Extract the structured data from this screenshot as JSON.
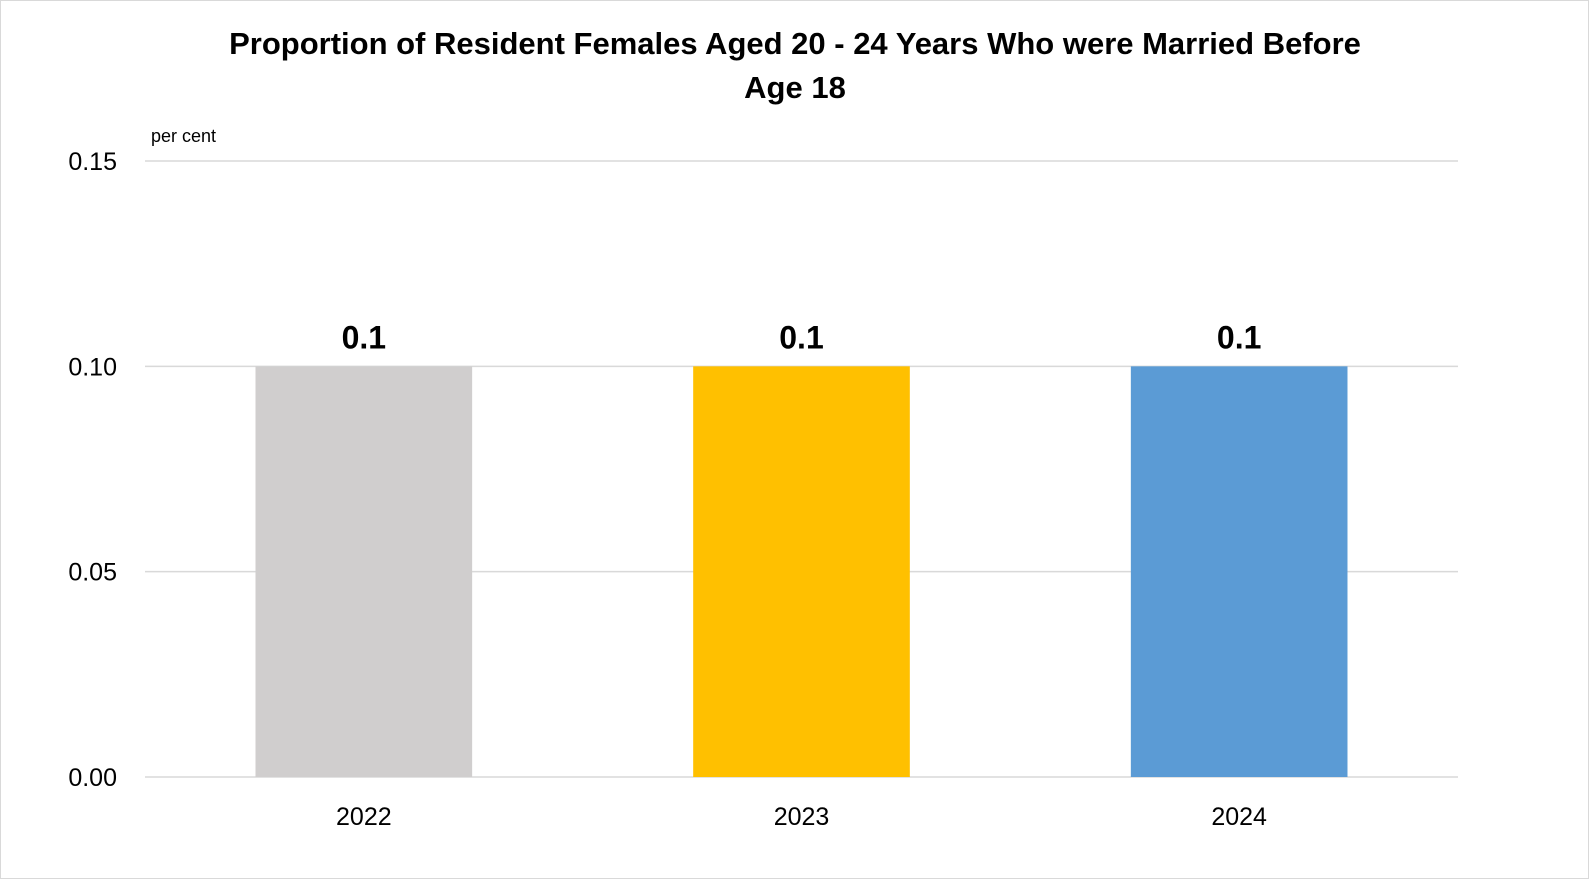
{
  "chart_data": {
    "type": "bar",
    "title_lines": [
      "Proportion of Resident Females Aged 20 - 24 Years Who were Married Before",
      "Age 18"
    ],
    "unit_label": "per cent",
    "categories": [
      "2022",
      "2023",
      "2024"
    ],
    "values": [
      0.1,
      0.1,
      0.1
    ],
    "data_labels": [
      "0.1",
      "0.1",
      "0.1"
    ],
    "bar_colors": [
      "#D0CECE",
      "#FFC000",
      "#5B9BD5"
    ],
    "ylim": [
      0,
      0.15
    ],
    "y_ticks": [
      0,
      0.05,
      0.1,
      0.15
    ],
    "y_tick_labels": [
      "0.00",
      "0.05",
      "0.10",
      "0.15"
    ],
    "xlabel": "",
    "ylabel": "",
    "grid": true,
    "legend": "none",
    "gridline_color": "#D9D9D9"
  }
}
